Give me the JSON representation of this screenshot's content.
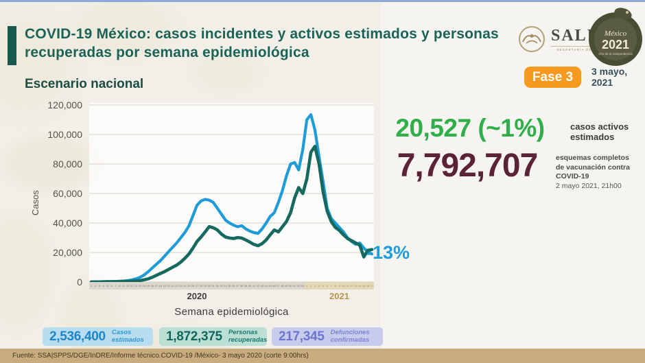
{
  "colors": {
    "accent_teal": "#1b6356",
    "line_blue": "#1f9cd8",
    "line_teal": "#15695f",
    "kpi_green": "#2fae4a",
    "kpi_maroon": "#5c2337",
    "badge_orange": "#f6991f",
    "footer_tan": "#c8ac7e"
  },
  "header": {
    "title": "COVID-19 México: casos incidentes y activos estimados y personas recuperadas por semana epidemiológica",
    "subtitle": "Escenario nacional",
    "phase_badge": "Fase 3",
    "date_line1": "3 mayo,",
    "date_line2": "2021",
    "salud": {
      "name": "SALUD",
      "caption": "SECRETARÍA DE SALUD"
    },
    "mexico2021": {
      "script": "México",
      "year": "2021",
      "tagline": "Año de la Independencia"
    }
  },
  "kpi": {
    "active_cases": {
      "value": "20,527 (~1%)",
      "label_line1": "casos activos",
      "label_line2": "estimados"
    },
    "vaccination": {
      "value": "7,792,707",
      "label_line1": "esquemas completos",
      "label_line2": "de vacunación contra",
      "label_line3": "COVID-19",
      "label_line4": "2 mayo 2021, 21h00"
    }
  },
  "chart_data": {
    "type": "line",
    "title": "",
    "xlabel": "Semana epidemiológica",
    "ylabel": "Casos",
    "ylim": [
      0,
      120000
    ],
    "grid": true,
    "legend_position": "none",
    "yticks": [
      "0",
      "20,000",
      "40,000",
      "60,000",
      "80,000",
      "100,000",
      "120,000"
    ],
    "x_groups": [
      {
        "label": "2020",
        "weeks": 53
      },
      {
        "label": "2021",
        "weeks": 17
      }
    ],
    "annotation": {
      "text": "-13%",
      "color": "#1f9cd8"
    },
    "series": [
      {
        "name": "Casos incidentes estimados",
        "color": "#1f9cd8",
        "values": [
          100,
          150,
          200,
          250,
          300,
          350,
          400,
          500,
          700,
          1000,
          1500,
          2200,
          3200,
          4800,
          7000,
          9500,
          12000,
          14500,
          17500,
          20500,
          23500,
          26500,
          30000,
          33500,
          38000,
          45000,
          52000,
          55000,
          56000,
          55500,
          54000,
          50000,
          46000,
          42000,
          40000,
          38500,
          37500,
          38200,
          36000,
          34500,
          33500,
          33000,
          36000,
          40000,
          44500,
          47000,
          54000,
          62000,
          72000,
          80000,
          81000,
          76000,
          90000,
          110000,
          113500,
          103000,
          85000,
          68000,
          50000,
          43000,
          40000,
          37000,
          34000,
          30000,
          27500,
          25500,
          26500,
          23000,
          20500,
          19000
        ]
      },
      {
        "name": "Personas recuperadas",
        "color": "#15695f",
        "values": [
          50,
          80,
          100,
          150,
          200,
          250,
          300,
          350,
          400,
          500,
          600,
          800,
          1000,
          1500,
          2200,
          3200,
          4500,
          5800,
          7000,
          8500,
          10000,
          11500,
          13500,
          16000,
          19000,
          23000,
          27500,
          30500,
          34000,
          37600,
          36800,
          35300,
          32500,
          30500,
          29800,
          29500,
          30200,
          29800,
          28500,
          27000,
          25500,
          24600,
          26000,
          28500,
          32000,
          35300,
          34000,
          37500,
          41000,
          47000,
          57000,
          64000,
          60000,
          70000,
          88000,
          92000,
          80000,
          61000,
          48000,
          41000,
          37000,
          35000,
          32000,
          29500,
          28000,
          26500,
          25000,
          17000,
          21500,
          22000
        ]
      }
    ]
  },
  "stats": [
    {
      "value": "2,536,400",
      "label_line1": "Casos",
      "label_line2": "estimados"
    },
    {
      "value": "1,872,375",
      "label_line1": "Personas",
      "label_line2": "recuperadas"
    },
    {
      "value": "217,345",
      "label_line1": "Defunciones",
      "label_line2": "confirmadas"
    }
  ],
  "footer": {
    "source": "Fuente: SSA|SPPS/DGE/InDRE/Informe técnico.COVID-19 /México- 3 mayo 2020 (corte 9:00hrs)"
  }
}
